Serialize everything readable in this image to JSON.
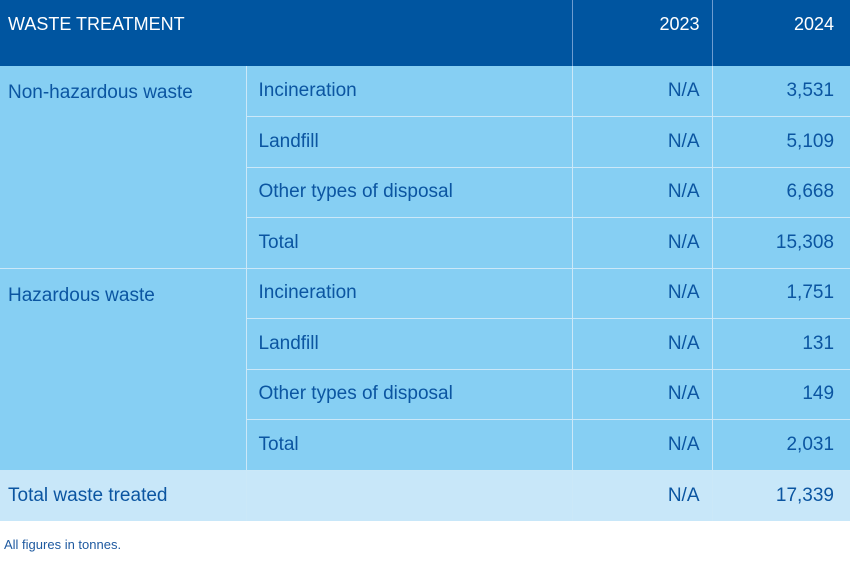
{
  "table": {
    "header": {
      "title": "WASTE TREATMENT",
      "year_2023": "2023",
      "year_2024": "2024"
    },
    "groups": [
      {
        "category": "Non-hazardous waste",
        "rows": [
          {
            "label": "Incineration",
            "v2023": "N/A",
            "v2024": "3,531"
          },
          {
            "label": "Landfill",
            "v2023": "N/A",
            "v2024": "5,109"
          },
          {
            "label": "Other types of disposal",
            "v2023": "N/A",
            "v2024": "6,668"
          },
          {
            "label": "Total",
            "v2023": "N/A",
            "v2024": "15,308"
          }
        ]
      },
      {
        "category": "Hazardous waste",
        "rows": [
          {
            "label": "Incineration",
            "v2023": "N/A",
            "v2024": "1,751"
          },
          {
            "label": "Landfill",
            "v2023": "N/A",
            "v2024": "131"
          },
          {
            "label": "Other types of disposal",
            "v2023": "N/A",
            "v2024": "149"
          },
          {
            "label": "Total",
            "v2023": "N/A",
            "v2024": "2,031"
          }
        ]
      }
    ],
    "total": {
      "label": "Total waste treated",
      "sub": "",
      "v2023": "N/A",
      "v2024": "17,339"
    }
  },
  "footnote": "All figures in tonnes."
}
